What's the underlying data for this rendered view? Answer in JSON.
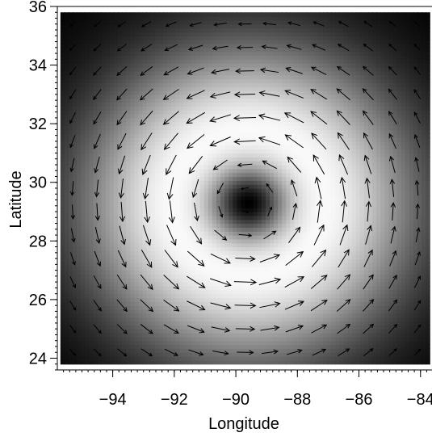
{
  "chart_data": {
    "type": "heatmap",
    "subtype": "vector-field-over-intensity",
    "title": "",
    "xlabel": "Longitude",
    "ylabel": "Latitude",
    "xlim": [
      -95.8,
      -83.6
    ],
    "ylim": [
      23.6,
      36.0
    ],
    "xticks": [
      -94,
      -92,
      -90,
      -88,
      -86,
      -84
    ],
    "yticks": [
      24,
      26,
      28,
      30,
      32,
      34,
      36
    ],
    "grid": false,
    "legend": "none",
    "colormap": "grayscale",
    "field_extent": {
      "x": [
        -95.7,
        -83.7
      ],
      "y": [
        23.8,
        35.8
      ]
    },
    "vortex_center": [
      -89.6,
      29.3
    ],
    "intensity_profile": {
      "description": "dark at center, brightest ring, fading to dark at edges",
      "peak_radius_deg": 2.2,
      "falloff_deg": 3.4
    },
    "rotation": "counterclockwise",
    "arrow_spacing_deg": 0.8,
    "colors": {
      "arrow": "#000000",
      "low": "#000000",
      "high": "#ffffff"
    }
  }
}
